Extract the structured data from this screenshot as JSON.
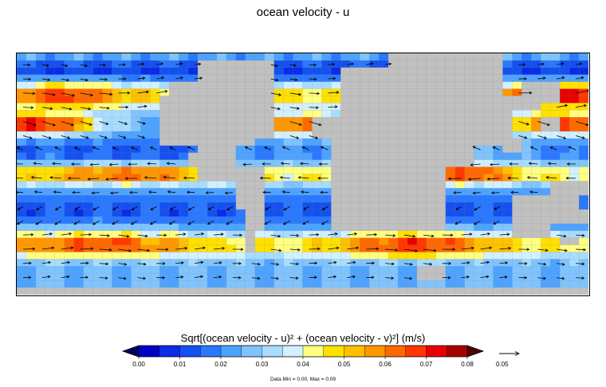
{
  "chart_data": {
    "type": "heatmap",
    "title": "ocean velocity - u",
    "subtitle": "",
    "colorbar_label": "Sqrt[(ocean velocity - u)² + (ocean velocity - v)²]  (m/s)",
    "colorbar_ticks": [
      "0.00",
      "0.01",
      "0.02",
      "0.03",
      "0.04",
      "0.05",
      "0.06",
      "0.07",
      "0.08"
    ],
    "color_levels": [
      0.0,
      0.005,
      0.01,
      0.015,
      0.02,
      0.025,
      0.03,
      0.035,
      0.04,
      0.045,
      0.05,
      0.055,
      0.06,
      0.065,
      0.07,
      0.075,
      0.08
    ],
    "colors": [
      "#0000c8",
      "#0a2ce6",
      "#1450f0",
      "#2a78ff",
      "#4da3ff",
      "#7fc4ff",
      "#a8dcff",
      "#d2f0ff",
      "#ffff80",
      "#ffe000",
      "#ffc000",
      "#ff9800",
      "#ff6a00",
      "#ff3800",
      "#e80000",
      "#a80000"
    ],
    "below_color": "#00005a",
    "above_color": "#500000",
    "land_color": "#c0c0c0",
    "grid_color": "#888888",
    "reference_vector_label": "0.05",
    "data_min": 0.0,
    "data_max": 0.09,
    "data_minmax_text": "Data Min = 0.00, Max = 0.09",
    "grid": true,
    "domain": {
      "lon_range": [
        0,
        360
      ],
      "lat_range": [
        -80,
        90
      ]
    },
    "speed_field_description": "coarse global ocean current speed with vector arrows",
    "current_speed_bands": [
      {
        "lat": 60,
        "speed_east": 0.065,
        "speed_west": 0.06
      },
      {
        "lat": 30,
        "speed_east": 0.08,
        "speed_west": 0.075
      },
      {
        "lat": -10,
        "speed_east": 0.05,
        "speed_west": 0.05
      },
      {
        "lat": -45,
        "speed_east": 0.055,
        "speed_west": 0.065
      }
    ]
  }
}
